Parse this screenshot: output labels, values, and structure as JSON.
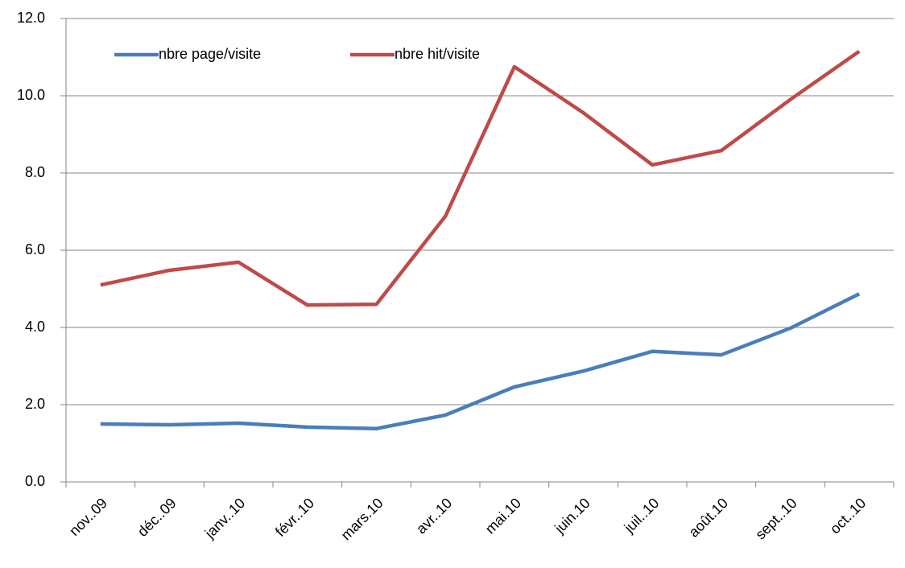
{
  "chart_data": {
    "type": "line",
    "categories": [
      "nov..09",
      "déc..09",
      "janv..10",
      "févr..10",
      "mars.10",
      "avr..10",
      "mai.10",
      "juin.10",
      "juil..10",
      "août.10",
      "sept..10",
      "oct..10"
    ],
    "series": [
      {
        "name": "nbre page/visite",
        "color": "#4a7ebb",
        "values": [
          1.5,
          1.48,
          1.52,
          1.42,
          1.38,
          1.73,
          2.46,
          2.87,
          3.38,
          3.29,
          3.98,
          4.87
        ]
      },
      {
        "name": "nbre hit/visite",
        "color": "#be4b48",
        "values": [
          5.1,
          5.48,
          5.69,
          4.58,
          4.6,
          6.88,
          10.75,
          9.56,
          8.21,
          8.58,
          9.9,
          11.15
        ]
      }
    ],
    "ylim": [
      0,
      12
    ],
    "yticks": [
      {
        "value": 0,
        "label": "0.0"
      },
      {
        "value": 2,
        "label": "2.0"
      },
      {
        "value": 4,
        "label": "4.0"
      },
      {
        "value": 6,
        "label": "6.0"
      },
      {
        "value": 8,
        "label": "8.0"
      },
      {
        "value": 10,
        "label": "10.0"
      },
      {
        "value": 12,
        "label": "12.0"
      }
    ],
    "grid": true,
    "legend": "top-left"
  }
}
